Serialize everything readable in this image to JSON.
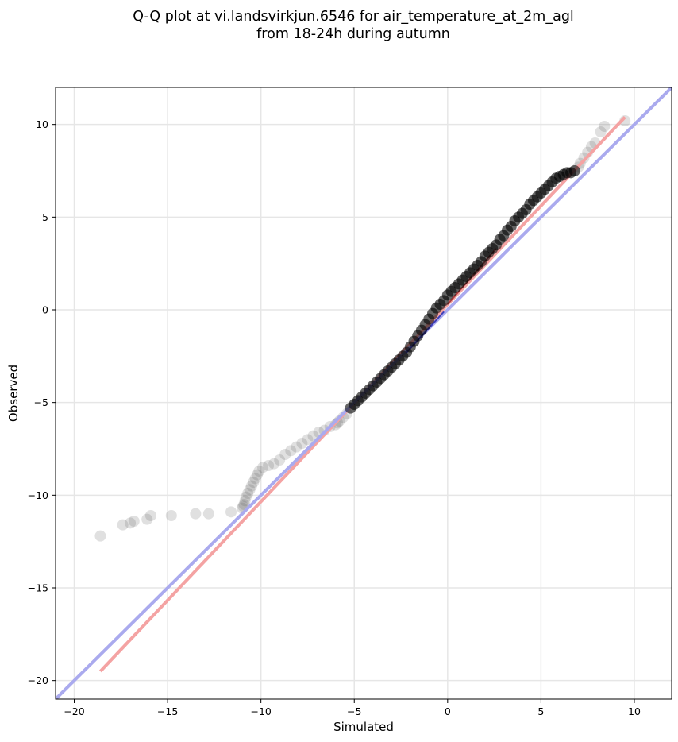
{
  "chart_data": {
    "type": "scatter",
    "title_lines": [
      "Q-Q plot at vi.landsvirkjun.6546 for air_temperature_at_2m_agl",
      "from 18-24h during autumn"
    ],
    "xlabel": "Simulated",
    "ylabel": "Observed",
    "xlim": [
      -21,
      12
    ],
    "ylim": [
      -21,
      12
    ],
    "xticks": [
      -20,
      -15,
      -10,
      -5,
      0,
      5,
      10
    ],
    "yticks": [
      -20,
      -15,
      -10,
      -5,
      0,
      5,
      10
    ],
    "xtick_labels": [
      "−20",
      "−15",
      "−10",
      "−5",
      "0",
      "5",
      "10"
    ],
    "ytick_labels": [
      "−20",
      "−15",
      "−10",
      "−5",
      "0",
      "5",
      "10"
    ],
    "grid": true,
    "series": [
      {
        "kind": "scatter",
        "color": "#555555",
        "opacity": 0.18,
        "x": [
          -18.6,
          -17.4,
          -17.0,
          -16.8,
          -16.1,
          -15.9,
          -14.8,
          -13.5,
          -12.8,
          -11.6,
          -11.0,
          -10.95,
          -10.9,
          -10.85,
          -10.8,
          -10.7,
          -10.6,
          -10.5,
          -10.4,
          -10.3,
          -10.2,
          -10.1,
          -9.9,
          -9.6,
          -9.3,
          -9.0,
          -8.7,
          -8.4,
          -8.1,
          -7.8,
          -7.5,
          -7.2,
          -6.9,
          -6.6,
          -6.3,
          -6.0,
          -5.9,
          -5.8,
          -5.6,
          -5.4,
          -5.2,
          -5.0,
          -4.8,
          -4.6,
          -4.4,
          -4.2,
          -4.0,
          -3.8,
          -3.6,
          -3.4,
          -3.2,
          -3.0,
          -2.8,
          -2.6,
          -2.4,
          -2.2,
          -2.0,
          -1.8,
          -1.6,
          -1.4,
          -1.2,
          -1.0,
          -0.8,
          -0.6,
          -0.4,
          -0.2,
          0.0,
          0.2,
          0.4,
          0.6,
          0.8,
          1.0,
          1.2,
          1.4,
          1.6,
          1.8,
          2.0,
          2.2,
          2.4,
          2.6,
          2.8,
          3.0,
          3.2,
          3.4,
          3.6,
          3.8,
          4.0,
          4.2,
          4.4,
          4.6,
          4.8,
          5.0,
          5.2,
          5.4,
          5.6,
          5.8,
          6.0,
          6.2,
          6.4,
          6.6,
          6.8,
          7.0,
          7.1,
          7.3,
          7.5,
          7.7,
          7.9,
          8.2,
          8.4,
          9.5
        ],
        "y": [
          -12.2,
          -11.6,
          -11.5,
          -11.4,
          -11.3,
          -11.1,
          -11.1,
          -11.0,
          -11.0,
          -10.9,
          -10.7,
          -10.6,
          -10.5,
          -10.3,
          -10.1,
          -9.9,
          -9.7,
          -9.5,
          -9.3,
          -9.1,
          -8.9,
          -8.7,
          -8.5,
          -8.4,
          -8.3,
          -8.1,
          -7.8,
          -7.6,
          -7.4,
          -7.2,
          -7.0,
          -6.8,
          -6.6,
          -6.5,
          -6.3,
          -6.2,
          -6.1,
          -6.0,
          -5.8,
          -5.6,
          -5.3,
          -5.1,
          -4.9,
          -4.7,
          -4.5,
          -4.3,
          -4.1,
          -3.9,
          -3.7,
          -3.5,
          -3.3,
          -3.1,
          -2.9,
          -2.7,
          -2.5,
          -2.3,
          -2.0,
          -1.7,
          -1.4,
          -1.1,
          -0.8,
          -0.5,
          -0.2,
          0.1,
          0.3,
          0.5,
          0.8,
          1.0,
          1.2,
          1.4,
          1.6,
          1.8,
          2.0,
          2.2,
          2.4,
          2.6,
          2.9,
          3.1,
          3.3,
          3.5,
          3.8,
          4.0,
          4.3,
          4.5,
          4.8,
          5.0,
          5.2,
          5.4,
          5.7,
          5.9,
          6.1,
          6.3,
          6.5,
          6.7,
          6.9,
          7.1,
          7.2,
          7.3,
          7.4,
          7.4,
          7.5,
          7.7,
          7.9,
          8.2,
          8.5,
          8.8,
          9.0,
          9.6,
          9.9,
          10.2
        ]
      },
      {
        "kind": "line",
        "color": "#f4a3a3",
        "x": [
          -18.6,
          9.5
        ],
        "y": [
          -19.5,
          10.4
        ]
      },
      {
        "kind": "line",
        "color": "#aaaaee",
        "x": [
          -21,
          12
        ],
        "y": [
          -21,
          12
        ]
      },
      {
        "kind": "line",
        "color": "#8b1010",
        "x": [
          0.0,
          2.6
        ],
        "y": [
          0.3,
          3.3
        ]
      },
      {
        "kind": "line",
        "color": "#1010a0",
        "x": [
          -2.2,
          -0.2
        ],
        "y": [
          -2.3,
          -0.1
        ]
      }
    ]
  }
}
